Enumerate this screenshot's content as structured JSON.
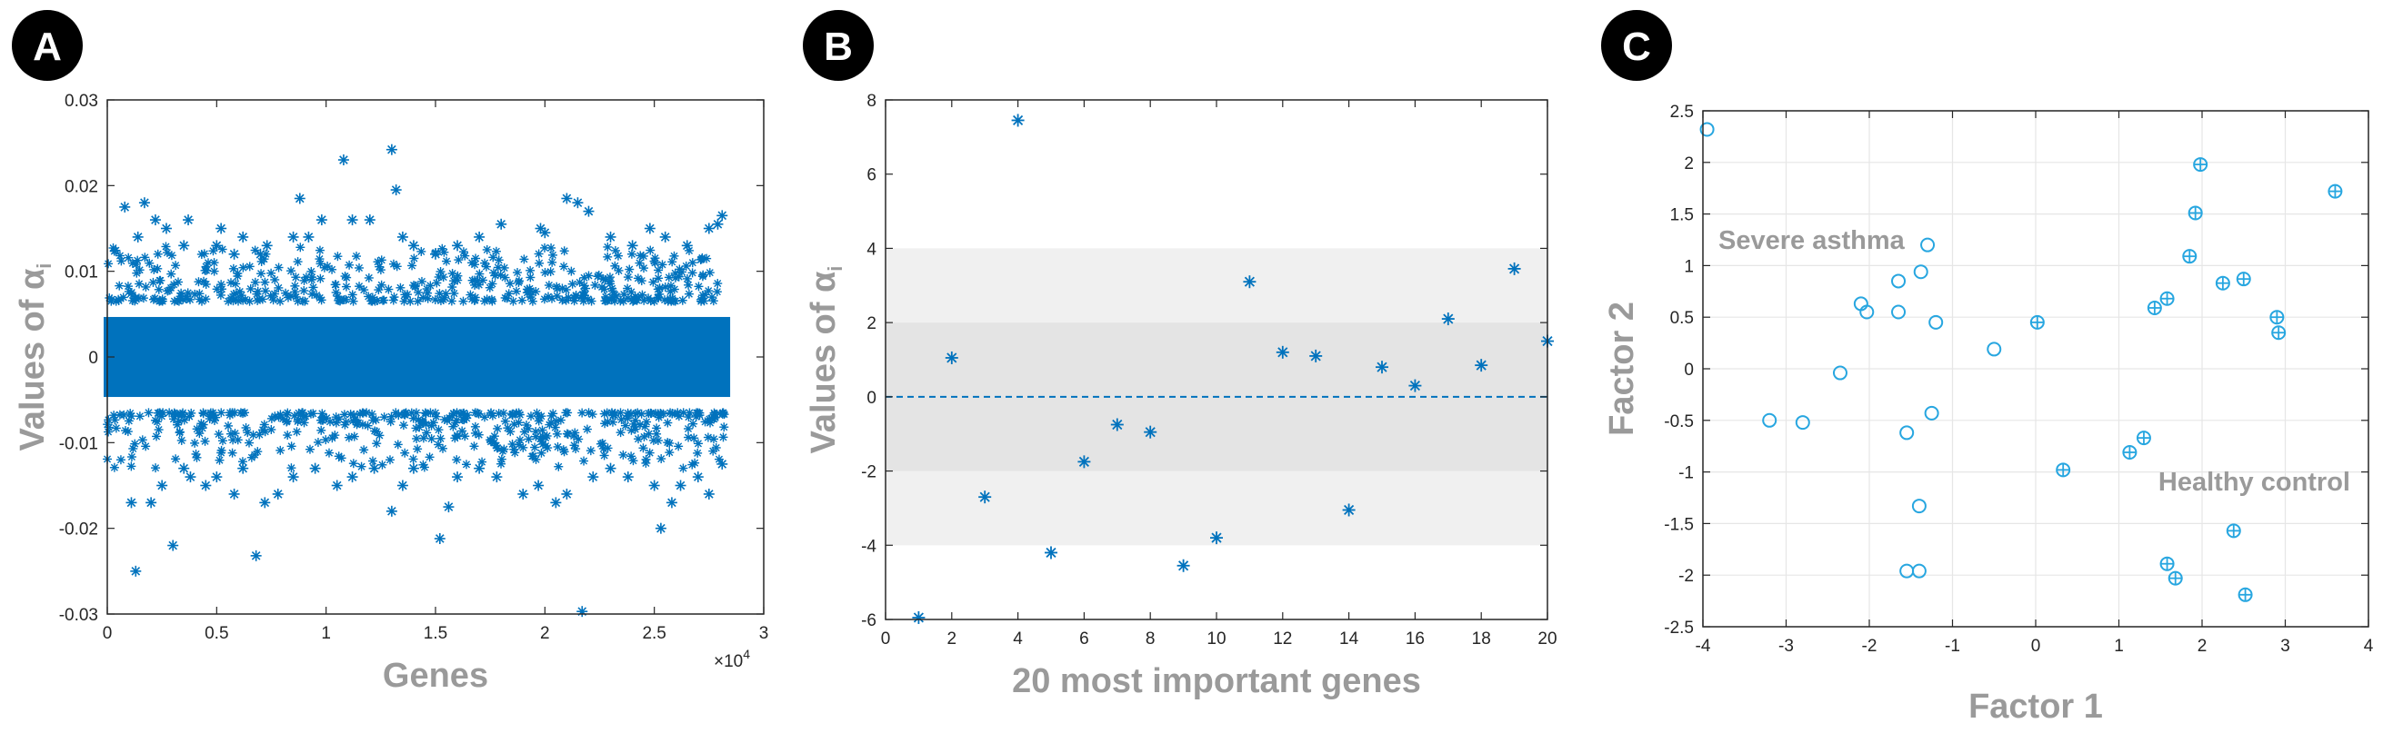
{
  "panels": [
    {
      "letter": "A"
    },
    {
      "letter": "B"
    },
    {
      "letter": "C"
    }
  ],
  "colors": {
    "marker": "#0072BD",
    "circle": "#27A6E0",
    "label_gray": "#9a9a9a",
    "band_outer": "#F0F0F0",
    "band_inner": "#E4E4E4",
    "grid": "#E6E6E6"
  },
  "chart_data": [
    {
      "type": "scatter",
      "panel": "A",
      "marker": "asterisk",
      "xlabel": "Genes",
      "ylabel": "Values of α",
      "ylabel_subscript": "i",
      "x_multiplier": "×10",
      "x_multiplier_exp": "4",
      "xlim": [
        0,
        3
      ],
      "ylim": [
        -0.03,
        0.03
      ],
      "xticks": [
        "0",
        "0.5",
        "1",
        "1.5",
        "2",
        "2.5",
        "3"
      ],
      "yticks": [
        "-0.03",
        "-0.02",
        "-0.01",
        "0",
        "0.01",
        "0.02",
        "0.03"
      ],
      "dense_band": {
        "x_range": [
          0.0,
          2.83
        ],
        "y_range": [
          -0.007,
          0.007
        ]
      },
      "points": [
        [
          0.08,
          0.0175
        ],
        [
          0.14,
          0.014
        ],
        [
          0.17,
          0.018
        ],
        [
          0.22,
          0.016
        ],
        [
          0.27,
          0.015
        ],
        [
          0.35,
          0.013
        ],
        [
          0.37,
          0.016
        ],
        [
          0.5,
          0.013
        ],
        [
          0.52,
          0.015
        ],
        [
          0.58,
          0.012
        ],
        [
          0.62,
          0.014
        ],
        [
          0.7,
          0.012
        ],
        [
          0.73,
          0.013
        ],
        [
          0.85,
          0.014
        ],
        [
          0.88,
          0.0185
        ],
        [
          0.92,
          0.014
        ],
        [
          0.98,
          0.016
        ],
        [
          1.08,
          0.023
        ],
        [
          1.12,
          0.016
        ],
        [
          1.2,
          0.016
        ],
        [
          1.3,
          0.0242
        ],
        [
          1.32,
          0.0195
        ],
        [
          1.35,
          0.014
        ],
        [
          1.4,
          0.013
        ],
        [
          1.5,
          0.012
        ],
        [
          1.6,
          0.013
        ],
        [
          1.7,
          0.014
        ],
        [
          1.8,
          0.0155
        ],
        [
          1.98,
          0.015
        ],
        [
          2.0,
          0.0145
        ],
        [
          2.1,
          0.0185
        ],
        [
          2.15,
          0.018
        ],
        [
          2.2,
          0.017
        ],
        [
          2.3,
          0.014
        ],
        [
          2.4,
          0.013
        ],
        [
          2.48,
          0.015
        ],
        [
          2.55,
          0.014
        ],
        [
          2.65,
          0.013
        ],
        [
          2.75,
          0.015
        ],
        [
          2.79,
          0.0155
        ],
        [
          2.81,
          0.0165
        ],
        [
          0.11,
          -0.017
        ],
        [
          0.13,
          -0.025
        ],
        [
          0.2,
          -0.017
        ],
        [
          0.25,
          -0.015
        ],
        [
          0.3,
          -0.022
        ],
        [
          0.35,
          -0.013
        ],
        [
          0.38,
          -0.014
        ],
        [
          0.45,
          -0.015
        ],
        [
          0.5,
          -0.014
        ],
        [
          0.58,
          -0.016
        ],
        [
          0.62,
          -0.013
        ],
        [
          0.68,
          -0.0232
        ],
        [
          0.72,
          -0.017
        ],
        [
          0.78,
          -0.016
        ],
        [
          0.85,
          -0.014
        ],
        [
          0.95,
          -0.013
        ],
        [
          1.05,
          -0.015
        ],
        [
          1.12,
          -0.014
        ],
        [
          1.22,
          -0.013
        ],
        [
          1.3,
          -0.018
        ],
        [
          1.35,
          -0.015
        ],
        [
          1.4,
          -0.013
        ],
        [
          1.52,
          -0.0212
        ],
        [
          1.56,
          -0.0175
        ],
        [
          1.6,
          -0.014
        ],
        [
          1.7,
          -0.013
        ],
        [
          1.78,
          -0.014
        ],
        [
          1.9,
          -0.016
        ],
        [
          1.97,
          -0.015
        ],
        [
          2.05,
          -0.017
        ],
        [
          2.1,
          -0.016
        ],
        [
          2.17,
          -0.0297
        ],
        [
          2.22,
          -0.014
        ],
        [
          2.3,
          -0.013
        ],
        [
          2.38,
          -0.014
        ],
        [
          2.5,
          -0.015
        ],
        [
          2.53,
          -0.02
        ],
        [
          2.58,
          -0.017
        ],
        [
          2.62,
          -0.015
        ],
        [
          2.7,
          -0.014
        ],
        [
          2.75,
          -0.016
        ],
        [
          2.81,
          -0.0125
        ]
      ]
    },
    {
      "type": "scatter",
      "panel": "B",
      "marker": "asterisk",
      "xlabel": "20 most important genes",
      "ylabel": "Values of α",
      "ylabel_subscript": "i",
      "xlim": [
        0,
        20
      ],
      "ylim": [
        -6,
        8
      ],
      "xticks": [
        "0",
        "2",
        "4",
        "6",
        "8",
        "10",
        "12",
        "14",
        "16",
        "18",
        "20"
      ],
      "yticks": [
        "-6",
        "-4",
        "-2",
        "0",
        "2",
        "4",
        "6",
        "8"
      ],
      "bands": [
        {
          "y_range": [
            -4,
            4
          ],
          "shade": "outer"
        },
        {
          "y_range": [
            -2,
            2
          ],
          "shade": "inner"
        }
      ],
      "reference_line": {
        "y": 0,
        "style": "dashed"
      },
      "x": [
        1,
        2,
        3,
        4,
        5,
        6,
        7,
        8,
        9,
        10,
        11,
        12,
        13,
        14,
        15,
        16,
        17,
        18,
        19,
        20
      ],
      "values": [
        -5.95,
        1.05,
        -2.7,
        7.45,
        -4.2,
        -1.75,
        -0.75,
        -0.95,
        -4.55,
        -3.8,
        3.1,
        1.2,
        1.1,
        -3.05,
        0.8,
        0.3,
        2.1,
        0.85,
        3.45,
        1.5
      ]
    },
    {
      "type": "scatter",
      "panel": "C",
      "xlabel": "Factor 1",
      "ylabel": "Factor 2",
      "xlim": [
        -4,
        4
      ],
      "ylim": [
        -2.5,
        2.5
      ],
      "grid": true,
      "xticks": [
        "-4",
        "-3",
        "-2",
        "-1",
        "0",
        "1",
        "2",
        "3",
        "4"
      ],
      "yticks": [
        "-2.5",
        "-2",
        "-1.5",
        "-1",
        "-0.5",
        "0",
        "0.5",
        "1",
        "1.5",
        "2",
        "2.5"
      ],
      "annotations": [
        {
          "text": "Severe asthma"
        },
        {
          "text": "Healthy control"
        }
      ],
      "series": [
        {
          "marker": "open-circle",
          "points": [
            [
              -3.95,
              2.32
            ],
            [
              -1.3,
              1.2
            ],
            [
              -1.38,
              0.94
            ],
            [
              -1.65,
              0.85
            ],
            [
              -2.1,
              0.63
            ],
            [
              -2.03,
              0.55
            ],
            [
              -1.65,
              0.55
            ],
            [
              -1.2,
              0.45
            ],
            [
              -0.5,
              0.19
            ],
            [
              -2.35,
              -0.04
            ],
            [
              -3.2,
              -0.5
            ],
            [
              -2.8,
              -0.52
            ],
            [
              -1.25,
              -0.43
            ],
            [
              -1.55,
              -0.62
            ],
            [
              -1.4,
              -1.33
            ],
            [
              -1.55,
              -1.96
            ],
            [
              -1.4,
              -1.96
            ]
          ]
        },
        {
          "marker": "circle-plus",
          "points": [
            [
              1.98,
              1.98
            ],
            [
              3.6,
              1.72
            ],
            [
              1.92,
              1.51
            ],
            [
              1.85,
              1.09
            ],
            [
              2.25,
              0.83
            ],
            [
              2.5,
              0.87
            ],
            [
              1.58,
              0.68
            ],
            [
              1.43,
              0.59
            ],
            [
              2.9,
              0.5
            ],
            [
              2.92,
              0.35
            ],
            [
              0.02,
              0.45
            ],
            [
              1.3,
              -0.67
            ],
            [
              1.13,
              -0.81
            ],
            [
              0.33,
              -0.98
            ],
            [
              2.38,
              -1.57
            ],
            [
              1.58,
              -1.89
            ],
            [
              1.68,
              -2.03
            ],
            [
              2.52,
              -2.19
            ]
          ]
        }
      ]
    }
  ]
}
